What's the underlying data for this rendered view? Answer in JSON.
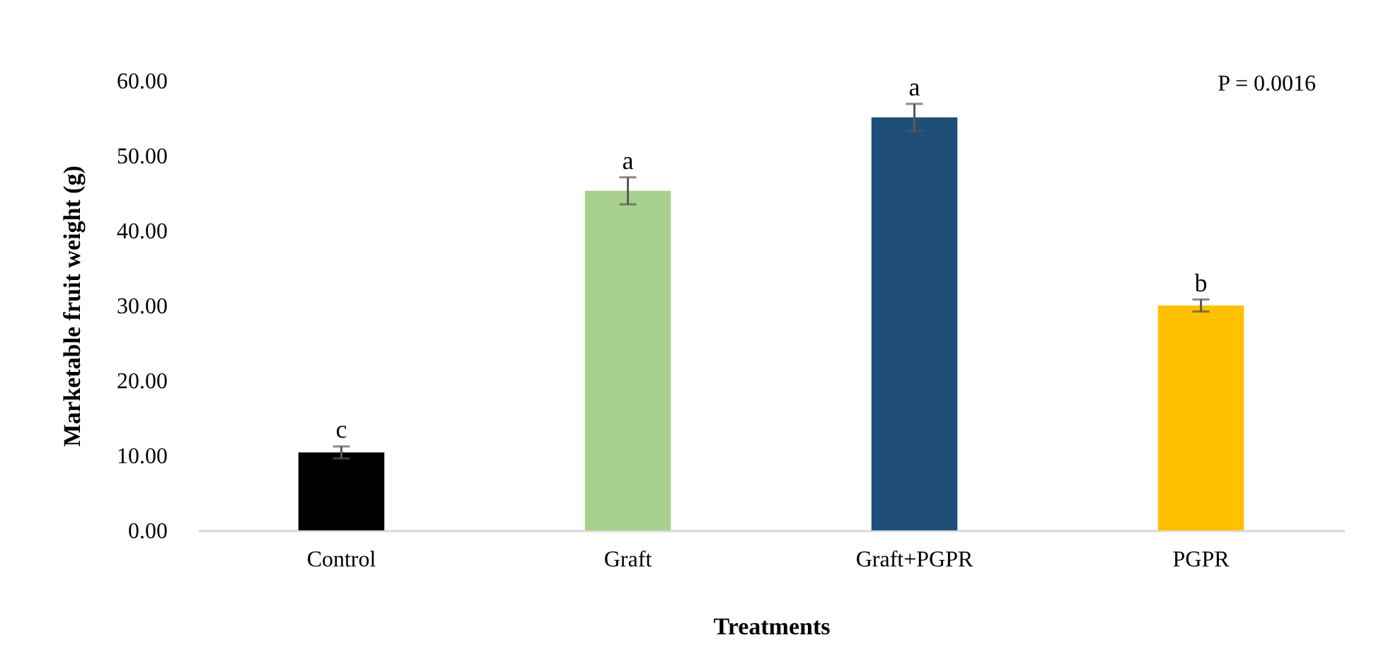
{
  "chart_data": {
    "type": "bar",
    "xlabel": "Treatments",
    "ylabel": "Marketable fruit weight (g)",
    "categories": [
      "Control",
      "Graft",
      "Graft+PGPR",
      "PGPR"
    ],
    "values": [
      10.4,
      45.3,
      55.1,
      30.0
    ],
    "colors": [
      "#000000",
      "#a9d18e",
      "#1f4e79",
      "#ffc000"
    ],
    "errors": [
      0.8,
      1.8,
      1.8,
      0.8
    ],
    "ylim": [
      0,
      60
    ],
    "yticks": [
      {
        "value": 0,
        "label": "0.00"
      },
      {
        "value": 10,
        "label": "10.00"
      },
      {
        "value": 20,
        "label": "20.00"
      },
      {
        "value": 30,
        "label": "30.00"
      },
      {
        "value": 40,
        "label": "40.00"
      },
      {
        "value": 50,
        "label": "50.00"
      },
      {
        "value": 60,
        "label": "60.00"
      }
    ],
    "grid": false,
    "legend": false,
    "annotations": [
      {
        "text": "c",
        "x": "Control",
        "y": 11.2
      },
      {
        "text": "a",
        "x": "Graft",
        "y": 47.1
      },
      {
        "text": "a",
        "x": "Graft+PGPR",
        "y": 56.9
      },
      {
        "text": "b",
        "x": "PGPR",
        "y": 30.8
      },
      "P = 0.0016"
    ]
  }
}
